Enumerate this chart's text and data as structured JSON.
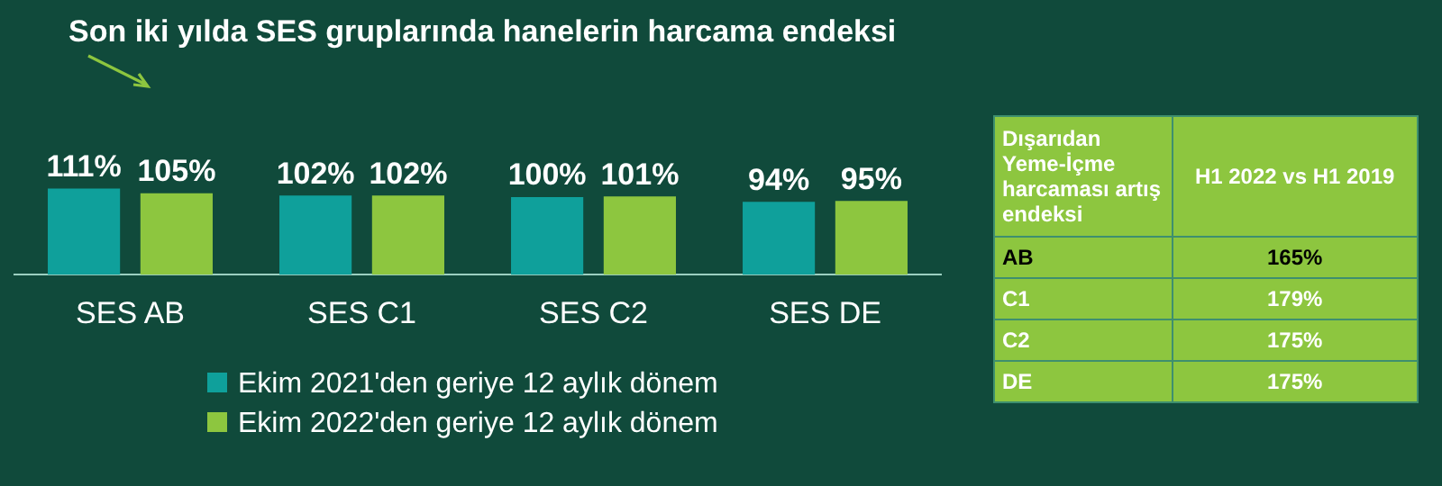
{
  "chart_data": [
    {
      "type": "bar",
      "title": "Son iki yılda SES gruplarında hanelerin harcama endeksi",
      "categories": [
        "SES AB",
        "SES C1",
        "SES C2",
        "SES DE"
      ],
      "legend": "bottom",
      "grid": false,
      "series": [
        {
          "name": "Ekim 2021'den geriye 12 aylık dönem",
          "color": "#0fa09b",
          "values": [
            111,
            102,
            100,
            94
          ],
          "value_labels": [
            "111%",
            "102%",
            "100%",
            "94%"
          ]
        },
        {
          "name": "Ekim 2022'den geriye 12 aylık dönem",
          "color": "#8dc63f",
          "values": [
            105,
            102,
            101,
            95
          ],
          "value_labels": [
            "105%",
            "102%",
            "101%",
            "95%"
          ]
        }
      ]
    },
    {
      "type": "other",
      "title": "Dışarıdan Yeme-İçme harcaması artış endeksi",
      "categories": [
        "AB",
        "C1",
        "C2",
        "DE"
      ],
      "series": [
        {
          "name": "H1 2022 vs H1 2019",
          "color": "#8dc63f",
          "values": [
            165,
            179,
            175,
            175
          ],
          "value_labels": [
            "165%",
            "179%",
            "175%",
            "175%"
          ]
        }
      ]
    }
  ]
}
